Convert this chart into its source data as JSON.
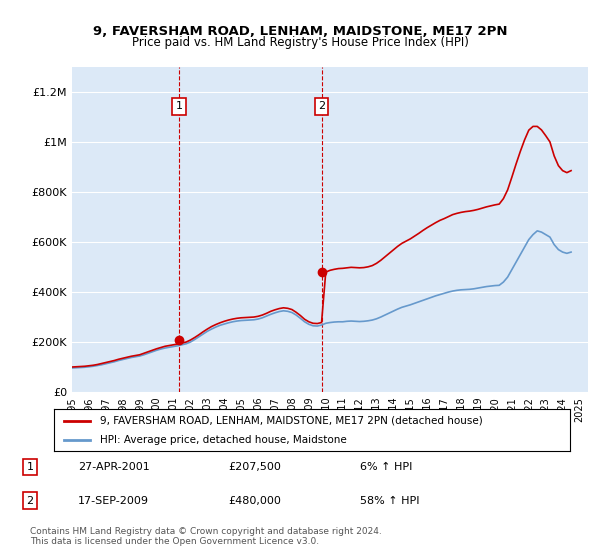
{
  "title": "9, FAVERSHAM ROAD, LENHAM, MAIDSTONE, ME17 2PN",
  "subtitle": "Price paid vs. HM Land Registry's House Price Index (HPI)",
  "ylabel": "",
  "background_color": "#ffffff",
  "plot_bg_color": "#dce9f7",
  "grid_color": "#ffffff",
  "red_line_color": "#cc0000",
  "blue_line_color": "#6699cc",
  "marker1_date_idx": 6.33,
  "marker2_date_idx": 14.75,
  "marker1_value": 207500,
  "marker2_value": 480000,
  "marker1_label": "1",
  "marker2_label": "2",
  "annotation1": "27-APR-2001    £207,500    6% ↑ HPI",
  "annotation2": "17-SEP-2009    £480,000    58% ↑ HPI",
  "legend_line1": "9, FAVERSHAM ROAD, LENHAM, MAIDSTONE, ME17 2PN (detached house)",
  "legend_line2": "HPI: Average price, detached house, Maidstone",
  "footer": "Contains HM Land Registry data © Crown copyright and database right 2024.\nThis data is licensed under the Open Government Licence v3.0.",
  "xlim_start": 1995.0,
  "xlim_end": 2025.5,
  "ylim_top": 1300000,
  "yticks": [
    0,
    200000,
    400000,
    600000,
    800000,
    1000000,
    1200000
  ],
  "ytick_labels": [
    "£0",
    "£200K",
    "£400K",
    "£600K",
    "£800K",
    "£1M",
    "£1.2M"
  ],
  "xtick_years": [
    1995,
    1996,
    1997,
    1998,
    1999,
    2000,
    2001,
    2002,
    2003,
    2004,
    2005,
    2006,
    2007,
    2008,
    2009,
    2010,
    2011,
    2012,
    2013,
    2014,
    2015,
    2016,
    2017,
    2018,
    2019,
    2020,
    2021,
    2022,
    2023,
    2024,
    2025
  ],
  "hpi_x": [
    1995.0,
    1995.25,
    1995.5,
    1995.75,
    1996.0,
    1996.25,
    1996.5,
    1996.75,
    1997.0,
    1997.25,
    1997.5,
    1997.75,
    1998.0,
    1998.25,
    1998.5,
    1998.75,
    1999.0,
    1999.25,
    1999.5,
    1999.75,
    2000.0,
    2000.25,
    2000.5,
    2000.75,
    2001.0,
    2001.25,
    2001.5,
    2001.75,
    2002.0,
    2002.25,
    2002.5,
    2002.75,
    2003.0,
    2003.25,
    2003.5,
    2003.75,
    2004.0,
    2004.25,
    2004.5,
    2004.75,
    2005.0,
    2005.25,
    2005.5,
    2005.75,
    2006.0,
    2006.25,
    2006.5,
    2006.75,
    2007.0,
    2007.25,
    2007.5,
    2007.75,
    2008.0,
    2008.25,
    2008.5,
    2008.75,
    2009.0,
    2009.25,
    2009.5,
    2009.75,
    2010.0,
    2010.25,
    2010.5,
    2010.75,
    2011.0,
    2011.25,
    2011.5,
    2011.75,
    2012.0,
    2012.25,
    2012.5,
    2012.75,
    2013.0,
    2013.25,
    2013.5,
    2013.75,
    2014.0,
    2014.25,
    2014.5,
    2014.75,
    2015.0,
    2015.25,
    2015.5,
    2015.75,
    2016.0,
    2016.25,
    2016.5,
    2016.75,
    2017.0,
    2017.25,
    2017.5,
    2017.75,
    2018.0,
    2018.25,
    2018.5,
    2018.75,
    2019.0,
    2019.25,
    2019.5,
    2019.75,
    2020.0,
    2020.25,
    2020.5,
    2020.75,
    2021.0,
    2021.25,
    2021.5,
    2021.75,
    2022.0,
    2022.25,
    2022.5,
    2022.75,
    2023.0,
    2023.25,
    2023.5,
    2023.75,
    2024.0,
    2024.25,
    2024.5
  ],
  "hpi_y": [
    96000,
    97000,
    98000,
    99000,
    101000,
    103000,
    106000,
    109000,
    113000,
    117000,
    121000,
    126000,
    130000,
    134000,
    138000,
    141000,
    144000,
    149000,
    155000,
    161000,
    167000,
    172000,
    176000,
    179000,
    182000,
    185000,
    189000,
    193000,
    200000,
    210000,
    221000,
    232000,
    243000,
    252000,
    260000,
    267000,
    272000,
    277000,
    281000,
    284000,
    286000,
    287000,
    288000,
    289000,
    292000,
    297000,
    304000,
    311000,
    317000,
    322000,
    325000,
    323000,
    318000,
    308000,
    295000,
    281000,
    271000,
    265000,
    264000,
    268000,
    275000,
    278000,
    280000,
    281000,
    281000,
    283000,
    284000,
    283000,
    282000,
    283000,
    285000,
    288000,
    293000,
    300000,
    308000,
    316000,
    324000,
    332000,
    339000,
    344000,
    349000,
    355000,
    361000,
    367000,
    373000,
    379000,
    385000,
    390000,
    395000,
    400000,
    404000,
    407000,
    409000,
    410000,
    411000,
    413000,
    416000,
    419000,
    422000,
    424000,
    426000,
    427000,
    440000,
    460000,
    490000,
    520000,
    550000,
    580000,
    610000,
    630000,
    645000,
    640000,
    630000,
    620000,
    590000,
    570000,
    560000,
    555000,
    560000
  ],
  "red_x": [
    1995.0,
    1995.25,
    1995.5,
    1995.75,
    1996.0,
    1996.25,
    1996.5,
    1996.75,
    1997.0,
    1997.25,
    1997.5,
    1997.75,
    1998.0,
    1998.25,
    1998.5,
    1998.75,
    1999.0,
    1999.25,
    1999.5,
    1999.75,
    2000.0,
    2000.25,
    2000.5,
    2000.75,
    2001.0,
    2001.25,
    2001.5,
    2001.75,
    2002.0,
    2002.25,
    2002.5,
    2002.75,
    2003.0,
    2003.25,
    2003.5,
    2003.75,
    2004.0,
    2004.25,
    2004.5,
    2004.75,
    2005.0,
    2005.25,
    2005.5,
    2005.75,
    2006.0,
    2006.25,
    2006.5,
    2006.75,
    2007.0,
    2007.25,
    2007.5,
    2007.75,
    2008.0,
    2008.25,
    2008.5,
    2008.75,
    2009.0,
    2009.25,
    2009.5,
    2009.75,
    2010.0,
    2010.25,
    2010.5,
    2010.75,
    2011.0,
    2011.25,
    2011.5,
    2011.75,
    2012.0,
    2012.25,
    2012.5,
    2012.75,
    2013.0,
    2013.25,
    2013.5,
    2013.75,
    2014.0,
    2014.25,
    2014.5,
    2014.75,
    2015.0,
    2015.25,
    2015.5,
    2015.75,
    2016.0,
    2016.25,
    2016.5,
    2016.75,
    2017.0,
    2017.25,
    2017.5,
    2017.75,
    2018.0,
    2018.25,
    2018.5,
    2018.75,
    2019.0,
    2019.25,
    2019.5,
    2019.75,
    2020.0,
    2020.25,
    2020.5,
    2020.75,
    2021.0,
    2021.25,
    2021.5,
    2021.75,
    2022.0,
    2022.25,
    2022.5,
    2022.75,
    2023.0,
    2023.25,
    2023.5,
    2023.75,
    2024.0,
    2024.25,
    2024.5
  ],
  "red_y": [
    100000,
    101000,
    102000,
    103000,
    105000,
    107000,
    110000,
    114000,
    118000,
    122000,
    126000,
    131000,
    135000,
    139000,
    143000,
    146000,
    149000,
    155000,
    161000,
    167000,
    173000,
    178000,
    183000,
    186000,
    189000,
    192000,
    196000,
    200000,
    208000,
    218000,
    229000,
    241000,
    252000,
    262000,
    270000,
    277000,
    283000,
    288000,
    292000,
    295000,
    297000,
    298000,
    299000,
    300000,
    303000,
    308000,
    315000,
    323000,
    329000,
    334000,
    337000,
    335000,
    330000,
    319000,
    306000,
    291000,
    281000,
    275000,
    274000,
    278000,
    480000,
    487000,
    491000,
    494000,
    495000,
    497000,
    499000,
    498000,
    497000,
    498000,
    501000,
    506000,
    515000,
    527000,
    541000,
    555000,
    569000,
    583000,
    595000,
    604000,
    613000,
    624000,
    635000,
    647000,
    658000,
    668000,
    678000,
    687000,
    694000,
    702000,
    710000,
    715000,
    719000,
    722000,
    724000,
    727000,
    731000,
    736000,
    741000,
    745000,
    749000,
    752000,
    774000,
    809000,
    860000,
    913000,
    963000,
    1009000,
    1048000,
    1063000,
    1063000,
    1049000,
    1026000,
    1001000,
    945000,
    906000,
    886000,
    878000,
    886000
  ],
  "dashed_v1_x": 2001.33,
  "dashed_v2_x": 2009.75
}
